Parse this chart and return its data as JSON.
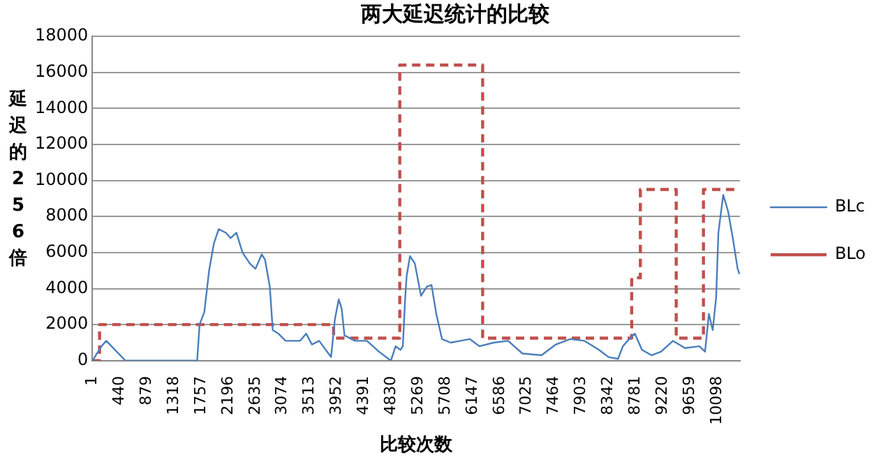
{
  "chart_data": {
    "type": "line",
    "title": "两大延迟统计的比较",
    "xlabel": "比较次数",
    "ylabel": "延迟的256倍",
    "xlim": [
      0,
      10470
    ],
    "xticks": [
      1,
      440,
      879,
      1318,
      1757,
      2196,
      2635,
      3074,
      3513,
      3952,
      4391,
      4830,
      5269,
      5708,
      6147,
      6586,
      7025,
      7464,
      7903,
      8342,
      8781,
      9220,
      9659,
      10098
    ],
    "ylim": [
      0,
      18000
    ],
    "yticks": [
      0,
      2000,
      4000,
      6000,
      8000,
      10000,
      12000,
      14000,
      16000,
      18000
    ],
    "grid": "y",
    "legend": "right",
    "marker": "none",
    "series": [
      {
        "name": "BLc",
        "color": "#4a7ebb",
        "line_style": "solid",
        "x": [
          1,
          146,
          225,
          534,
          1694,
          1733,
          1810,
          1887,
          1964,
          2042,
          2158,
          2235,
          2328,
          2428,
          2544,
          2637,
          2738,
          2792,
          2869,
          2916,
          3008,
          3124,
          3240,
          3357,
          3457,
          3550,
          3666,
          3859,
          3921,
          3983,
          4030,
          4076,
          4246,
          4439,
          4633,
          4826,
          4903,
          4981,
          5019,
          5058,
          5081,
          5135,
          5213,
          5313,
          5406,
          5483,
          5560,
          5653,
          5792,
          5947,
          6102,
          6257,
          6489,
          6721,
          6953,
          7262,
          7494,
          7726,
          7958,
          8190,
          8345,
          8499,
          8577,
          8654,
          8770,
          8886,
          9040,
          9195,
          9388,
          9582,
          9814,
          9906,
          9968,
          10030,
          10085,
          10122,
          10200,
          10278,
          10355,
          10433,
          10463
        ],
        "values": [
          0,
          800,
          1100,
          0,
          0,
          2000,
          2700,
          5000,
          6500,
          7300,
          7100,
          6800,
          7100,
          6000,
          5400,
          5100,
          5900,
          5600,
          4100,
          1700,
          1500,
          1100,
          1100,
          1100,
          1500,
          900,
          1100,
          200,
          2300,
          3400,
          2900,
          1400,
          1100,
          1100,
          500,
          0,
          800,
          600,
          800,
          3500,
          4700,
          5800,
          5400,
          3600,
          4100,
          4200,
          2600,
          1200,
          1000,
          1100,
          1200,
          800,
          1000,
          1100,
          400,
          300,
          900,
          1200,
          1100,
          600,
          200,
          100,
          800,
          1100,
          1500,
          600,
          300,
          500,
          1100,
          700,
          800,
          500,
          2600,
          1700,
          3500,
          7100,
          9200,
          8300,
          6800,
          5100,
          4800
        ]
      },
      {
        "name": "BLo",
        "type": "step",
        "color": "#c0504d",
        "line_style": "dashed",
        "x": [
          1,
          116,
          3900,
          4970,
          6310,
          8720,
          8860,
          9440,
          9880,
          10470
        ],
        "values": [
          0,
          2000,
          1250,
          16400,
          1250,
          4600,
          9500,
          1250,
          9500,
          9500
        ]
      }
    ]
  }
}
